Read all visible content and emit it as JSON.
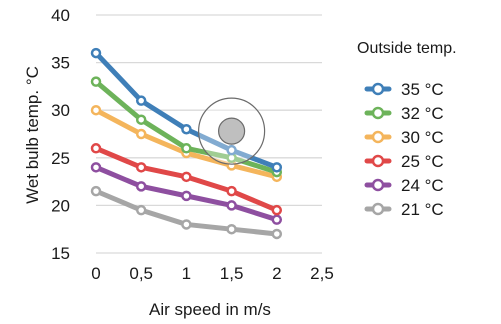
{
  "chart_data": {
    "type": "line",
    "xlabel": "Air speed in m/s",
    "ylabel": "Wet bulb temp.  °C",
    "legend_title": "Outside temp.",
    "legend_position": "right",
    "grid": "horizontal",
    "xlim": [
      0,
      2.5
    ],
    "ylim": [
      15,
      40
    ],
    "x_ticks": [
      0,
      0.5,
      1,
      1.5,
      2,
      2.5
    ],
    "x_tick_labels": [
      "0",
      "0,5",
      "1",
      "1,5",
      "2",
      "2,5"
    ],
    "y_ticks": [
      15,
      20,
      25,
      30,
      35,
      40
    ],
    "y_tick_labels": [
      "15",
      "20",
      "25",
      "30",
      "35",
      "40"
    ],
    "x": [
      0,
      0.5,
      1,
      1.5,
      2
    ],
    "series": [
      {
        "name": "35 °C",
        "color": "#3f7fb8",
        "values": [
          36.0,
          31.0,
          28.0,
          25.8,
          24.0
        ]
      },
      {
        "name": "32 °C",
        "color": "#6db35a",
        "values": [
          33.0,
          29.0,
          26.0,
          25.0,
          23.5
        ]
      },
      {
        "name": "30 °C",
        "color": "#f4b55c",
        "values": [
          30.0,
          27.5,
          25.5,
          24.2,
          23.0
        ]
      },
      {
        "name": "25 °C",
        "color": "#e04848",
        "values": [
          26.0,
          24.0,
          23.0,
          21.5,
          19.5
        ]
      },
      {
        "name": "24 °C",
        "color": "#8e4fa0",
        "values": [
          24.0,
          22.0,
          21.0,
          20.0,
          18.5
        ]
      },
      {
        "name": "21 °C",
        "color": "#a6a6a6",
        "values": [
          21.5,
          19.5,
          18.0,
          17.5,
          17.0
        ]
      }
    ],
    "highlight": {
      "x": 1.5,
      "y": 27.8
    }
  }
}
